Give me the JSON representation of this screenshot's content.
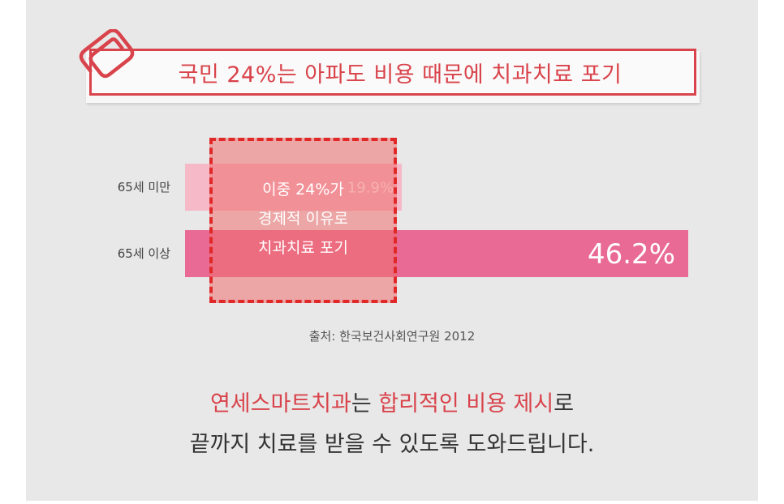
{
  "title": "국민 24%는 아파도 비용 때문에 치과치료 포기",
  "chart_data": {
    "type": "bar",
    "orientation": "horizontal",
    "categories": [
      "65세 미만",
      "65세 이상"
    ],
    "values": [
      19.9,
      46.2
    ],
    "value_labels": [
      "19.9%",
      "46.2%"
    ],
    "xlim": [
      0,
      46.2
    ],
    "grid": false,
    "colors": [
      "#f6b9c8",
      "#e96a94"
    ]
  },
  "overlay": {
    "lines": [
      "이중 24%가",
      "경제적 이유로",
      "치과치료 포기"
    ]
  },
  "source": "출처: 한국보건사회연구원 2012",
  "bottom": {
    "line1": {
      "brand": "연세스마트치과",
      "mid": "는 ",
      "highlight": "합리적인 비용 제시",
      "end": "로"
    },
    "line2": "끝까지 치료를 받을 수 있도록 도와드립니다."
  },
  "colors": {
    "accent": "#d9434b",
    "background": "#e8e8e8",
    "overlay_border": "#e02828"
  },
  "icons": {
    "clip": "paperclip-icon"
  }
}
